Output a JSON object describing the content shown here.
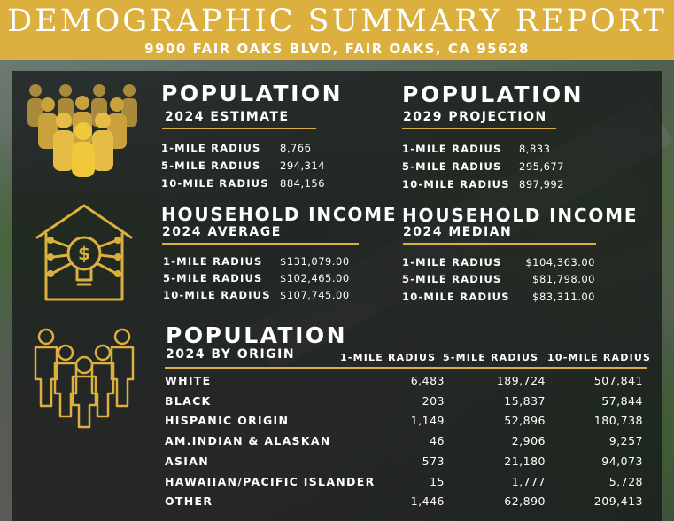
{
  "header": {
    "title": "DEMOGRAPHIC SUMMARY REPORT",
    "address": "9900 FAIR OAKS BLVD, FAIR OAKS, CA 95628"
  },
  "colors": {
    "gold": "#dcb03e",
    "overlay": "#121416"
  },
  "population_estimate": {
    "title": "POPULATION",
    "subtitle": "2024 ESTIMATE",
    "rows": [
      {
        "label": "1-MILE RADIUS",
        "value": "8,766"
      },
      {
        "label": "5-MILE RADIUS",
        "value": "294,314"
      },
      {
        "label": "10-MILE RADIUS",
        "value": "884,156"
      }
    ]
  },
  "population_projection": {
    "title": "POPULATION",
    "subtitle": "2029 PROJECTION",
    "rows": [
      {
        "label": "1-MILE RADIUS",
        "value": "8,833"
      },
      {
        "label": "5-MILE RADIUS",
        "value": "295,677"
      },
      {
        "label": "10-MILE RADIUS",
        "value": "897,992"
      }
    ]
  },
  "income_average": {
    "title": "HOUSEHOLD INCOME",
    "subtitle": "2024 AVERAGE",
    "rows": [
      {
        "label": "1-MILE RADIUS",
        "value": "$131,079.00"
      },
      {
        "label": "5-MILE RADIUS",
        "value": "$102,465.00"
      },
      {
        "label": "10-MILE RADIUS",
        "value": "$107,745.00"
      }
    ]
  },
  "income_median": {
    "title": "HOUSEHOLD INCOME",
    "subtitle": "2024 MEDIAN",
    "rows": [
      {
        "label": "1-MILE RADIUS",
        "value": "$104,363.00"
      },
      {
        "label": "5-MILE RADIUS",
        "value": "$81,798.00"
      },
      {
        "label": "10-MILE RADIUS",
        "value": "$83,311.00"
      }
    ]
  },
  "origin": {
    "title": "POPULATION",
    "subtitle": "2024 BY ORIGIN",
    "columns": [
      "1-MILE RADIUS",
      "5-MILE RADIUS",
      "10-MILE RADIUS"
    ],
    "rows": [
      {
        "label": "WHITE",
        "values": [
          "6,483",
          "189,724",
          "507,841"
        ]
      },
      {
        "label": "BLACK",
        "values": [
          "203",
          "15,837",
          "57,844"
        ]
      },
      {
        "label": "HISPANIC ORIGIN",
        "values": [
          "1,149",
          "52,896",
          "180,738"
        ]
      },
      {
        "label": "AM.INDIAN & ALASKAN",
        "values": [
          "46",
          "2,906",
          "9,257"
        ]
      },
      {
        "label": "ASIAN",
        "values": [
          "573",
          "21,180",
          "94,073"
        ]
      },
      {
        "label": "HAWAIIAN/PACIFIC ISLANDER",
        "values": [
          "15",
          "1,777",
          "5,728"
        ]
      },
      {
        "label": "OTHER",
        "values": [
          "1,446",
          "62,890",
          "209,413"
        ]
      }
    ]
  },
  "icons": [
    "crowd-icon",
    "house-income-icon",
    "family-group-icon"
  ]
}
